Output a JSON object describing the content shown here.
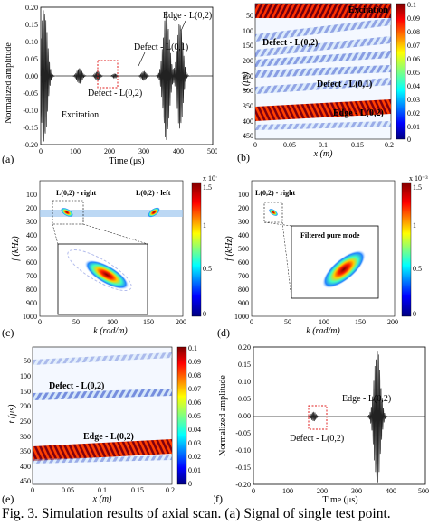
{
  "caption": "Fig. 3.    Simulation results of axial scan. (a) Signal of single test point.",
  "panels": {
    "a": {
      "label": "(a)",
      "ylabel": "Normalized amplitude",
      "xlabel": "Time (μs)",
      "x_ticks": [
        "0",
        "100",
        "200",
        "300",
        "400",
        "500"
      ],
      "y_ticks": [
        "0.20",
        "0.15",
        "0.10",
        "0.05",
        "0.00",
        "-0.05",
        "-0.10",
        "-0.15",
        "-0.20"
      ],
      "annotations": [
        "Edge - L(0,2)",
        "Defect - L(0,1)",
        "Defect - L(0,2)",
        "Excitation"
      ]
    },
    "b": {
      "label": "(b)",
      "ylabel": "t (μs)",
      "xlabel": "x (m)",
      "x_ticks": [
        "0",
        "0.05",
        "0.1",
        "0.15",
        "0.2"
      ],
      "y_ticks": [
        "50",
        "100",
        "150",
        "200",
        "250",
        "300",
        "350",
        "400",
        "450"
      ],
      "colorbar_ticks": [
        "0.1",
        "0.09",
        "0.08",
        "0.07",
        "0.06",
        "0.05",
        "0.04",
        "0.03",
        "0.02",
        "0.01",
        "0"
      ],
      "annotations": [
        "Excitation",
        "Defect - L(0,2)",
        "Defect - L(0,1)",
        "Edge - L(0,2)"
      ]
    },
    "c": {
      "label": "(c)",
      "ylabel": "f (kHz)",
      "xlabel": "k (rad/m)",
      "x_ticks": [
        "0",
        "50",
        "100",
        "150",
        "200"
      ],
      "y_ticks": [
        "100",
        "200",
        "300",
        "400",
        "500",
        "600",
        "700",
        "800",
        "900",
        "1000"
      ],
      "colorbar_ticks": [
        "1.5",
        "1",
        "0.5",
        "0"
      ],
      "colorbar_exp": "x 10⁻³",
      "annotations": [
        "L(0,2) - right",
        "L(0,2) - left"
      ]
    },
    "d": {
      "label": "(d)",
      "ylabel": "f (kHz)",
      "xlabel": "k (rad/m)",
      "x_ticks": [
        "0",
        "50",
        "100",
        "150",
        "200"
      ],
      "y_ticks": [
        "100",
        "200",
        "300",
        "400",
        "500",
        "600",
        "700",
        "800",
        "900",
        "1000"
      ],
      "colorbar_ticks": [
        "1.5",
        "1",
        "0.5",
        "0"
      ],
      "colorbar_exp": "x 10⁻³",
      "annotations": [
        "L(0,2) - right",
        "Filtered pure mode"
      ]
    },
    "e": {
      "label": "(e)",
      "ylabel": "t (μs)",
      "xlabel": "x (m)",
      "x_ticks": [
        "0",
        "0.05",
        "0.1",
        "0.15",
        "0.2"
      ],
      "y_ticks": [
        "50",
        "100",
        "150",
        "200",
        "250",
        "300",
        "350",
        "400",
        "450"
      ],
      "colorbar_ticks": [
        "0.1",
        "0.09",
        "0.08",
        "0.07",
        "0.06",
        "0.05",
        "0.04",
        "0.03",
        "0.02",
        "0.01",
        "0"
      ],
      "annotations": [
        "Defect - L(0,2)",
        "Edge - L(0,2)"
      ]
    },
    "f": {
      "label": "(f)",
      "ylabel": "Normalized amplitude",
      "xlabel": "Time (μs)",
      "x_ticks": [
        "0",
        "100",
        "200",
        "300",
        "400",
        "500"
      ],
      "y_ticks": [
        "0.20",
        "0.15",
        "0.10",
        "0.05",
        "0.00",
        "-0.05",
        "-0.10",
        "-0.15",
        "-0.20"
      ],
      "annotations": [
        "Edge - L(0,2)",
        "Defect - L(0,2)"
      ]
    }
  },
  "colors": {
    "signal": "#222222",
    "defect_box": "#e02020",
    "colormap": [
      "#00007f",
      "#0000ff",
      "#00a0ff",
      "#40ffc0",
      "#c0ff40",
      "#ffc000",
      "#ff2000",
      "#800000"
    ]
  }
}
